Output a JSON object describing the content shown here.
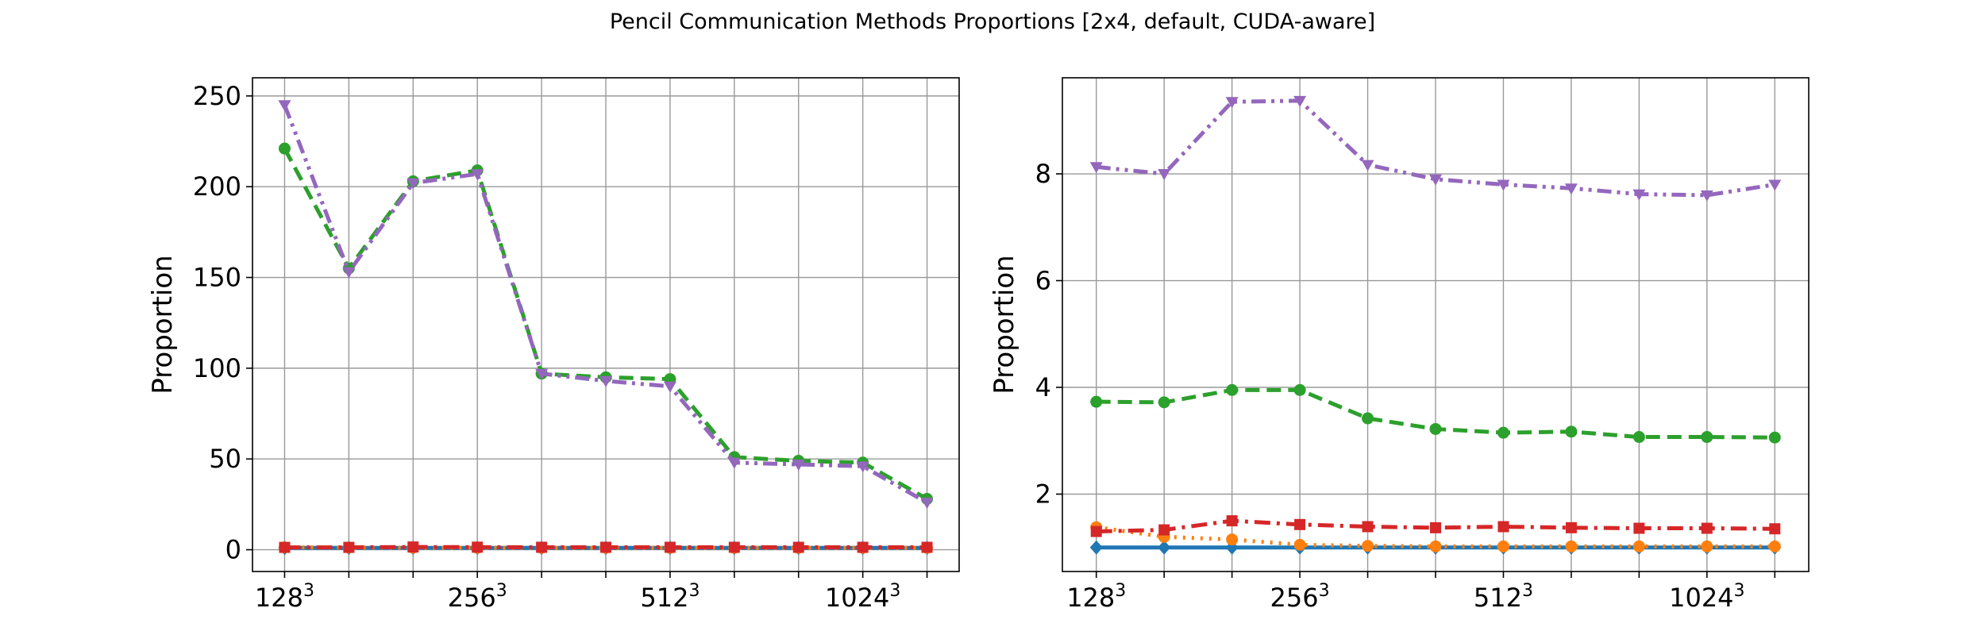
{
  "figure": {
    "title": "Pencil Communication Methods Proportions [2x4, default, CUDA-aware]"
  },
  "chart_data": [
    {
      "type": "line",
      "ylabel": "Proportion",
      "xlabel": "",
      "x_positions": [
        0,
        1,
        2,
        3,
        4,
        5,
        6,
        7,
        8,
        9,
        10
      ],
      "xtick_positions": [
        0,
        3,
        6,
        9
      ],
      "xtick_bases": [
        "128",
        "256",
        "512",
        "1024"
      ],
      "xtick_exponent": "3",
      "yticks": [
        0,
        50,
        100,
        150,
        200,
        250
      ],
      "ylim": [
        -12,
        260
      ],
      "grid": true,
      "series": [
        {
          "color": "#1f77b4",
          "style": "solid",
          "marker": "diamond",
          "values": [
            1,
            1,
            1,
            1,
            1,
            1,
            1,
            1,
            1,
            1,
            1
          ]
        },
        {
          "color": "#ff7f0e",
          "style": "dotted",
          "marker": "circle",
          "values": [
            1.3,
            1.2,
            1.1,
            1.05,
            1.03,
            1.02,
            1.02,
            1.02,
            1.02,
            1.02,
            1.02
          ]
        },
        {
          "color": "#2ca02c",
          "style": "dashed",
          "marker": "circle",
          "values": [
            221,
            155,
            203,
            209,
            97,
            95,
            94,
            51,
            49,
            48,
            28
          ]
        },
        {
          "color": "#d62728",
          "style": "dashdot",
          "marker": "square",
          "values": [
            1.3,
            1.3,
            1.5,
            1.4,
            1.35,
            1.35,
            1.35,
            1.35,
            1.33,
            1.33,
            1.33
          ]
        },
        {
          "color": "#9467bd",
          "style": "dashdotdot",
          "marker": "triangle-down",
          "values": [
            245,
            153,
            202,
            207,
            97,
            93,
            90,
            48,
            47,
            46,
            26
          ]
        }
      ]
    },
    {
      "type": "line",
      "ylabel": "Proportion",
      "xlabel": "",
      "x_positions": [
        0,
        1,
        2,
        3,
        4,
        5,
        6,
        7,
        8,
        9,
        10
      ],
      "xtick_positions": [
        0,
        3,
        6,
        9
      ],
      "xtick_bases": [
        "128",
        "256",
        "512",
        "1024"
      ],
      "xtick_exponent": "3",
      "yticks": [
        2,
        4,
        6,
        8
      ],
      "ylim": [
        0.55,
        9.8
      ],
      "grid": true,
      "series": [
        {
          "color": "#1f77b4",
          "style": "solid",
          "marker": "diamond",
          "values": [
            1,
            1,
            1,
            1,
            1,
            1,
            1,
            1,
            1,
            1,
            1
          ]
        },
        {
          "color": "#ff7f0e",
          "style": "dotted",
          "marker": "circle",
          "values": [
            1.38,
            1.2,
            1.15,
            1.05,
            1.03,
            1.02,
            1.02,
            1.02,
            1.02,
            1.02,
            1.02
          ]
        },
        {
          "color": "#2ca02c",
          "style": "dashed",
          "marker": "circle",
          "values": [
            3.73,
            3.72,
            3.95,
            3.95,
            3.42,
            3.22,
            3.15,
            3.17,
            3.07,
            3.07,
            3.06
          ]
        },
        {
          "color": "#d62728",
          "style": "dashdot",
          "marker": "square",
          "values": [
            1.3,
            1.33,
            1.5,
            1.43,
            1.39,
            1.37,
            1.39,
            1.37,
            1.36,
            1.36,
            1.35
          ]
        },
        {
          "color": "#9467bd",
          "style": "dashdotdot",
          "marker": "triangle-down",
          "values": [
            8.13,
            8.0,
            9.35,
            9.37,
            8.17,
            7.9,
            7.8,
            7.73,
            7.62,
            7.6,
            7.8
          ]
        }
      ]
    }
  ]
}
